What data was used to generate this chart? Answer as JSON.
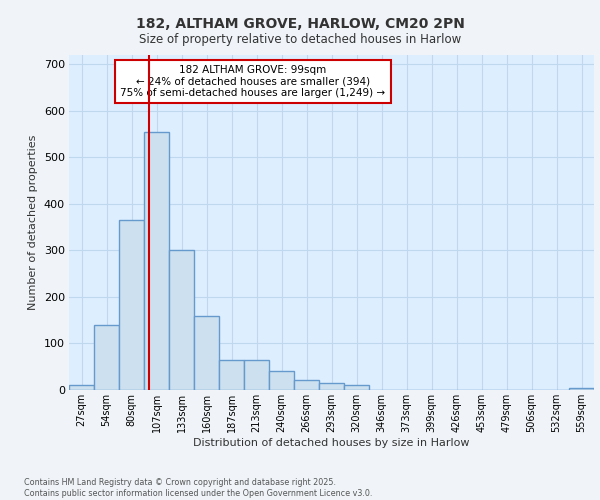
{
  "title_line1": "182, ALTHAM GROVE, HARLOW, CM20 2PN",
  "title_line2": "Size of property relative to detached houses in Harlow",
  "xlabel": "Distribution of detached houses by size in Harlow",
  "ylabel": "Number of detached properties",
  "bar_labels": [
    "27sqm",
    "54sqm",
    "80sqm",
    "107sqm",
    "133sqm",
    "160sqm",
    "187sqm",
    "213sqm",
    "240sqm",
    "266sqm",
    "293sqm",
    "320sqm",
    "346sqm",
    "373sqm",
    "399sqm",
    "426sqm",
    "453sqm",
    "479sqm",
    "506sqm",
    "532sqm",
    "559sqm"
  ],
  "bar_heights": [
    10,
    140,
    365,
    555,
    300,
    160,
    65,
    65,
    40,
    22,
    14,
    10,
    0,
    0,
    0,
    0,
    0,
    0,
    0,
    0,
    5
  ],
  "bar_color": "#cce0f0",
  "bar_edge_color": "#6699cc",
  "bar_edge_width": 1.0,
  "annotation_text": "182 ALTHAM GROVE: 99sqm\n← 24% of detached houses are smaller (394)\n75% of semi-detached houses are larger (1,249) →",
  "annotation_box_color": "#ffffff",
  "annotation_box_edge_color": "#cc0000",
  "ylim": [
    0,
    720
  ],
  "yticks": [
    0,
    100,
    200,
    300,
    400,
    500,
    600,
    700
  ],
  "grid_color": "#c0d8ee",
  "background_color": "#ddeeff",
  "fig_bg_color": "#f0f4f8",
  "footer_line1": "Contains HM Land Registry data © Crown copyright and database right 2025.",
  "footer_line2": "Contains public sector information licensed under the Open Government Licence v3.0."
}
